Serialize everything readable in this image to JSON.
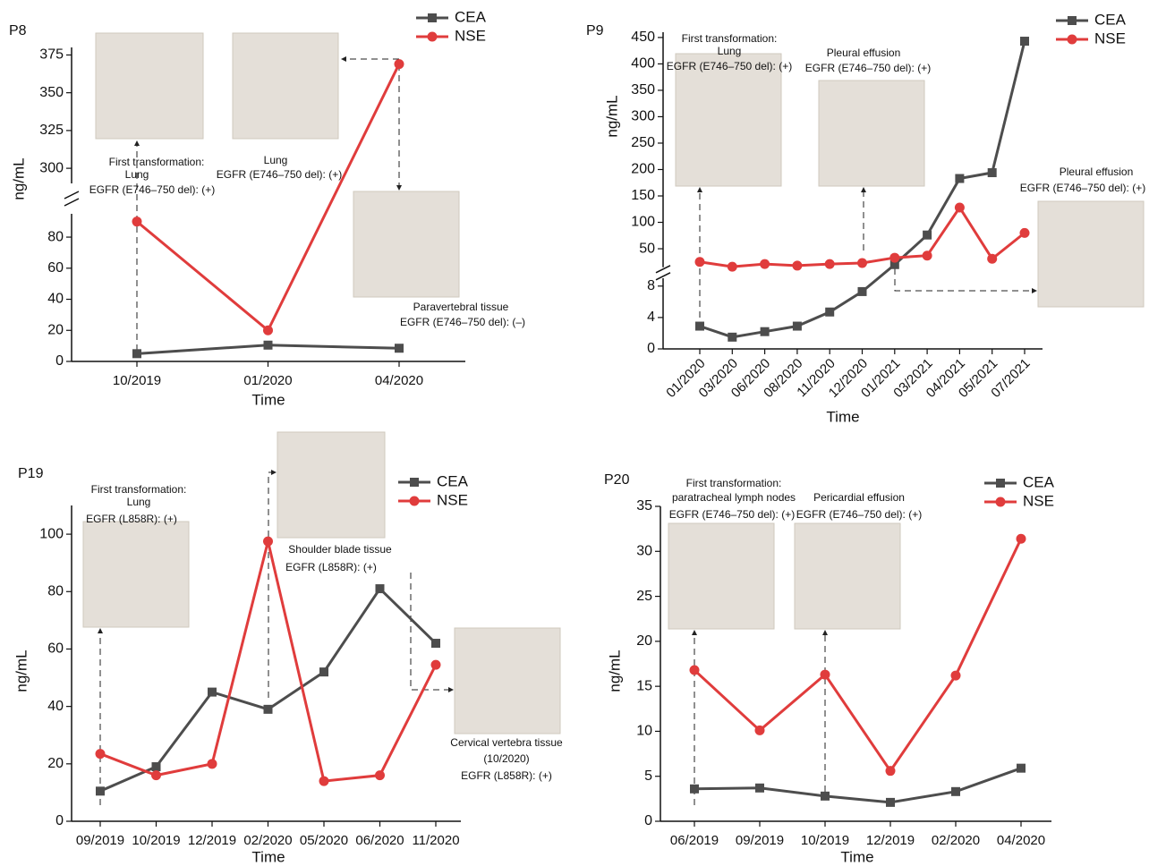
{
  "chart_data": [
    {
      "type": "line",
      "title": "P8",
      "y_label": "ng/mL",
      "x_label": "Time",
      "categories": [
        "10/2019",
        "01/2020",
        "04/2020"
      ],
      "series": [
        {
          "name": "CEA",
          "color": "#4d4d4d",
          "marker": "square",
          "values": [
            5,
            10.5,
            8.5
          ]
        },
        {
          "name": "NSE",
          "color": "#e03c3c",
          "marker": "circle",
          "values": [
            90,
            20,
            369
          ]
        }
      ],
      "y_segments": [
        {
          "ylim": [
            0,
            95
          ],
          "yticks": [
            0,
            20,
            40,
            60,
            80
          ]
        },
        {
          "ylim": [
            290,
            380
          ],
          "yticks": [
            300,
            325,
            350,
            375
          ]
        }
      ],
      "annotations": [
        "First transformation:",
        "Lung",
        "EGFR (E746–750 del): (+)",
        "Lung",
        "EGFR (E746–750 del): (+)",
        "Paravertebral tissue",
        "EGFR (E746–750 del): (–)"
      ]
    },
    {
      "type": "line",
      "title": "P9",
      "y_label": "ng/mL",
      "x_label": "Time",
      "categories": [
        "01/2020",
        "03/2020",
        "06/2020",
        "08/2020",
        "11/2020",
        "12/2020",
        "01/2021",
        "03/2021",
        "04/2021",
        "05/2021",
        "07/2021"
      ],
      "series": [
        {
          "name": "CEA",
          "color": "#4d4d4d",
          "marker": "square",
          "values": [
            2.9,
            1.5,
            2.2,
            2.9,
            4.7,
            7.3,
            20,
            76,
            183,
            194,
            443
          ]
        },
        {
          "name": "NSE",
          "color": "#e03c3c",
          "marker": "circle",
          "values": [
            25,
            16,
            21,
            18,
            21,
            23,
            33,
            37,
            128,
            31,
            80
          ]
        }
      ],
      "y_segments": [
        {
          "ylim": [
            0,
            9
          ],
          "yticks": [
            0,
            4,
            8
          ]
        },
        {
          "ylim": [
            15,
            460
          ],
          "yticks": [
            50,
            100,
            150,
            200,
            250,
            300,
            350,
            400,
            450
          ]
        }
      ],
      "annotations": [
        "First transformation:",
        "Lung",
        "EGFR (E746–750 del): (+)",
        "Pleural effusion",
        "EGFR (E746–750 del): (+)",
        "Pleural effusion",
        "EGFR (E746–750 del): (+)"
      ]
    },
    {
      "type": "line",
      "title": "P19",
      "y_label": "ng/mL",
      "x_label": "Time",
      "categories": [
        "09/2019",
        "10/2019",
        "12/2019",
        "02/2020",
        "05/2020",
        "06/2020",
        "11/2020"
      ],
      "series": [
        {
          "name": "CEA",
          "color": "#4d4d4d",
          "marker": "square",
          "values": [
            10.5,
            19,
            45,
            39,
            52,
            81,
            62
          ]
        },
        {
          "name": "NSE",
          "color": "#e03c3c",
          "marker": "circle",
          "values": [
            23.5,
            16,
            20,
            97.5,
            14,
            16,
            54.5
          ]
        }
      ],
      "y_segments": [
        {
          "ylim": [
            0,
            110
          ],
          "yticks": [
            0,
            20,
            40,
            60,
            80,
            100
          ]
        }
      ],
      "annotations": [
        "First transformation:",
        "Lung",
        "EGFR (L858R): (+)",
        "Shoulder blade tissue",
        "EGFR (L858R): (+)",
        "Cervical vertebra tissue",
        "(10/2020)",
        "EGFR (L858R): (+)"
      ]
    },
    {
      "type": "line",
      "title": "P20",
      "y_label": "ng/mL",
      "x_label": "Time",
      "categories": [
        "06/2019",
        "09/2019",
        "10/2019",
        "12/2019",
        "02/2020",
        "04/2020"
      ],
      "series": [
        {
          "name": "CEA",
          "color": "#4d4d4d",
          "marker": "square",
          "values": [
            3.6,
            3.7,
            2.8,
            2.1,
            3.3,
            5.9
          ]
        },
        {
          "name": "NSE",
          "color": "#e03c3c",
          "marker": "circle",
          "values": [
            16.8,
            10.1,
            16.3,
            5.6,
            16.2,
            31.4
          ]
        }
      ],
      "y_segments": [
        {
          "ylim": [
            0,
            35
          ],
          "yticks": [
            0,
            5,
            10,
            15,
            20,
            25,
            30,
            35
          ]
        }
      ],
      "annotations": [
        "First transformation:",
        "paratracheal lymph nodes",
        "EGFR (E746–750 del): (+)",
        "Pericardial effusion",
        "EGFR (E746–750 del): (+)"
      ]
    }
  ]
}
